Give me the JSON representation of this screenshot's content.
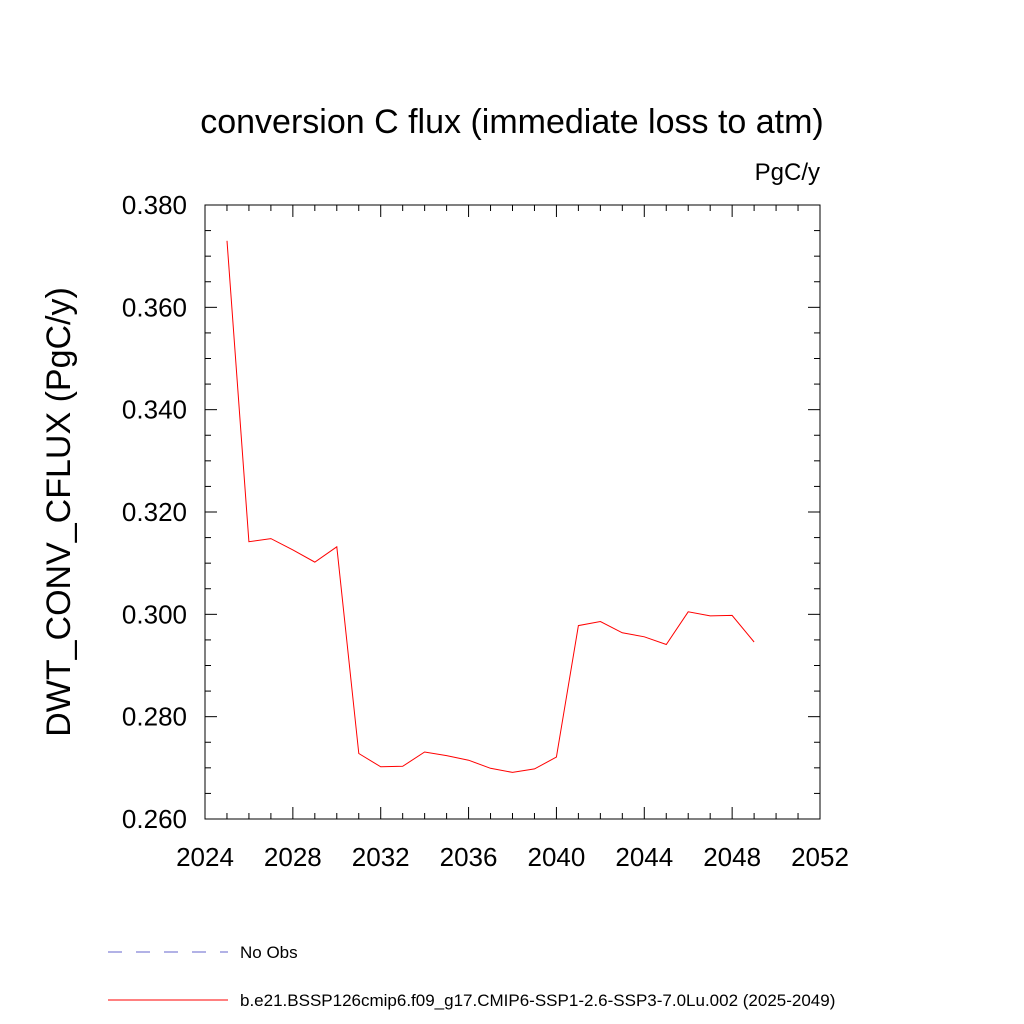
{
  "chart_data": {
    "type": "line",
    "title": "conversion C flux (immediate loss to atm)",
    "units": "PgC/y",
    "ylabel": "DWT_CONV_CFLUX  (PgC/y)",
    "xlabel": "",
    "xlim": [
      2024,
      2052
    ],
    "ylim": [
      0.26,
      0.38
    ],
    "x_ticks": [
      2024,
      2028,
      2032,
      2036,
      2040,
      2044,
      2048,
      2052
    ],
    "x_tick_labels": [
      "2024",
      "2028",
      "2032",
      "2036",
      "2040",
      "2044",
      "2048",
      "2052"
    ],
    "y_ticks": [
      0.26,
      0.28,
      0.3,
      0.32,
      0.34,
      0.36,
      0.38
    ],
    "y_tick_labels": [
      "0.260",
      "0.280",
      "0.300",
      "0.320",
      "0.340",
      "0.360",
      "0.380"
    ],
    "x_minor_step": 1,
    "y_minor_step": 0.005,
    "grid": false,
    "legend_position": "bottom",
    "series": [
      {
        "name": "No Obs",
        "color": "#6666cc",
        "style": "dashed",
        "x": [],
        "values": []
      },
      {
        "name": "b.e21.BSSP126cmip6.f09_g17.CMIP6-SSP1-2.6-SSP3-7.0Lu.002 (2025-2049)",
        "color": "#ff0000",
        "style": "solid",
        "x": [
          2025,
          2026,
          2027,
          2028,
          2029,
          2030,
          2031,
          2032,
          2033,
          2034,
          2035,
          2036,
          2037,
          2038,
          2039,
          2040,
          2041,
          2042,
          2043,
          2044,
          2045,
          2046,
          2047,
          2048,
          2049
        ],
        "values": [
          0.373,
          0.3142,
          0.3148,
          0.3126,
          0.3102,
          0.3132,
          0.2728,
          0.2702,
          0.2703,
          0.2731,
          0.2724,
          0.2715,
          0.2699,
          0.2691,
          0.2698,
          0.2721,
          0.2978,
          0.2986,
          0.2964,
          0.2956,
          0.2941,
          0.3005,
          0.2997,
          0.2998,
          0.2946
        ]
      }
    ]
  }
}
